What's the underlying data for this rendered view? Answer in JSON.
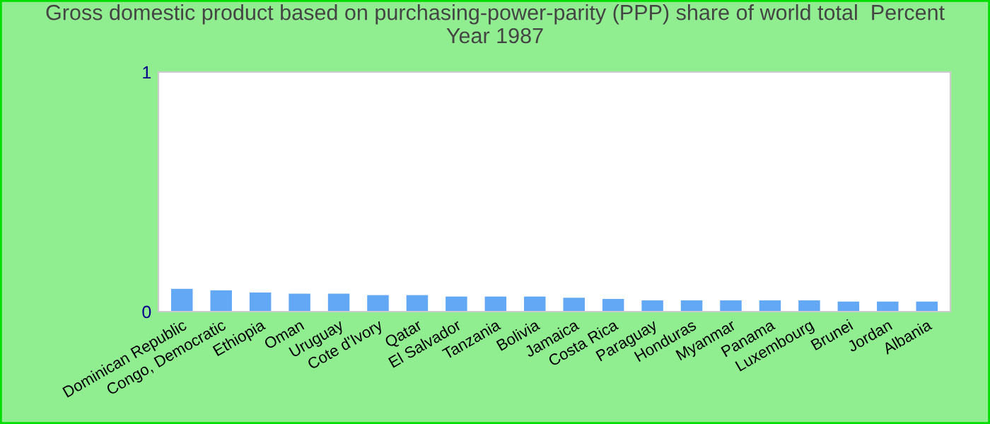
{
  "chart_data": {
    "type": "bar",
    "title": "Gross domestic product based on purchasing-power-parity (PPP) share of world total  Percent\nYear 1987",
    "categories": [
      "Dominican Republic",
      "Congo, Democratic",
      "Ethiopia",
      "Oman",
      "Uruguay",
      "Cote d'Ivory",
      "Qatar",
      "El Salvador",
      "Tanzania",
      "Bolivia",
      "Jamaica",
      "Costa Rica",
      "Paraguay",
      "Honduras",
      "Myanmar",
      "Panama",
      "Luxembourg",
      "Brunei",
      "Jordan",
      "Albania"
    ],
    "values": [
      0.095,
      0.089,
      0.08,
      0.075,
      0.075,
      0.069,
      0.069,
      0.063,
      0.063,
      0.063,
      0.058,
      0.053,
      0.047,
      0.047,
      0.047,
      0.047,
      0.047,
      0.042,
      0.042,
      0.042
    ],
    "color": "#63a8f5",
    "ylim": [
      0,
      1
    ],
    "yticks": [
      0,
      1
    ],
    "grid": false,
    "legend": false
  }
}
